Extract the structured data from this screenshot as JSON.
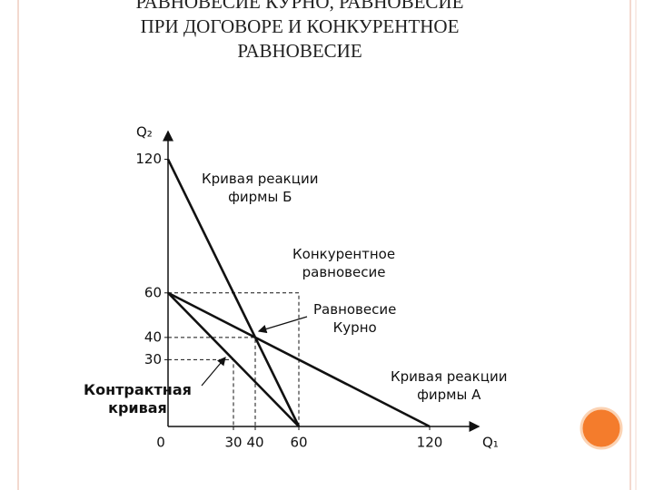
{
  "chart_data": {
    "type": "line",
    "title": "РАВНОВЕСИЕ КУРНО, РАВНОВЕСИЕ\nПРИ ДОГОВОРЕ И КОНКУРЕНТНОЕ\nРАВНОВЕСИЕ",
    "x_label": "Q₁",
    "y_label": "Q₂",
    "origin_label": "0",
    "xlim": [
      0,
      140
    ],
    "ylim": [
      0,
      130
    ],
    "xticks": [
      30,
      40,
      60,
      120
    ],
    "yticks": [
      30,
      40,
      60,
      120
    ],
    "series": [
      {
        "name": "Кривая реакции\nфирмы Б",
        "color": "#111111",
        "x": [
          0,
          60
        ],
        "values": [
          120,
          0
        ]
      },
      {
        "name": "Кривая реакции\nфирмы А",
        "color": "#111111",
        "x": [
          0,
          120
        ],
        "values": [
          60,
          0
        ]
      },
      {
        "name": "Контрактная\nкривая",
        "color": "#111111",
        "x": [
          0,
          60
        ],
        "values": [
          60,
          0
        ]
      }
    ],
    "equilibria": [
      {
        "name": "Конкурентное\nравновесие",
        "x": 60,
        "y": 60
      },
      {
        "name": "Равновесие\nКурно",
        "x": 40,
        "y": 40
      },
      {
        "x": 30,
        "y": 30
      }
    ]
  }
}
